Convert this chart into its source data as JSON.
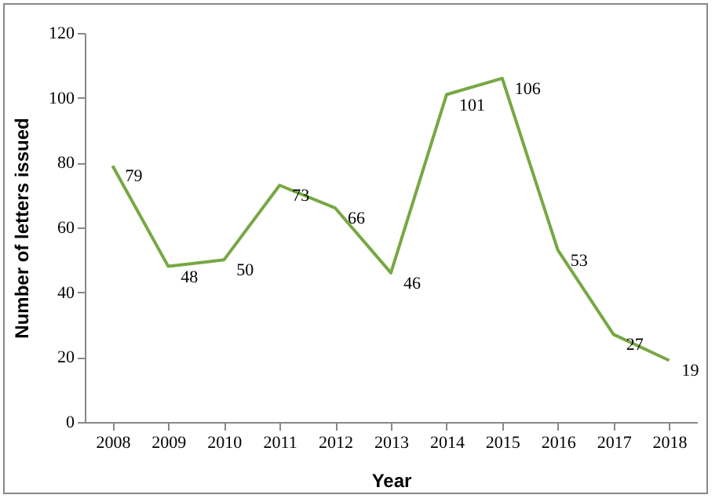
{
  "chart_data": {
    "type": "line",
    "xlabel": "Year",
    "ylabel": "Number of letters issued",
    "categories": [
      "2008",
      "2009",
      "2010",
      "2011",
      "2012",
      "2013",
      "2014",
      "2015",
      "2016",
      "2017",
      "2018"
    ],
    "series": [
      {
        "color": "#77a843",
        "values": [
          79,
          48,
          50,
          73,
          66,
          46,
          101,
          106,
          53,
          27,
          19
        ]
      }
    ],
    "ylim": [
      0,
      120
    ],
    "yticks": [
      0,
      20,
      40,
      60,
      80,
      100,
      120
    ],
    "data_labels": true,
    "grid": false,
    "marker": "none",
    "line_style": "solid"
  }
}
